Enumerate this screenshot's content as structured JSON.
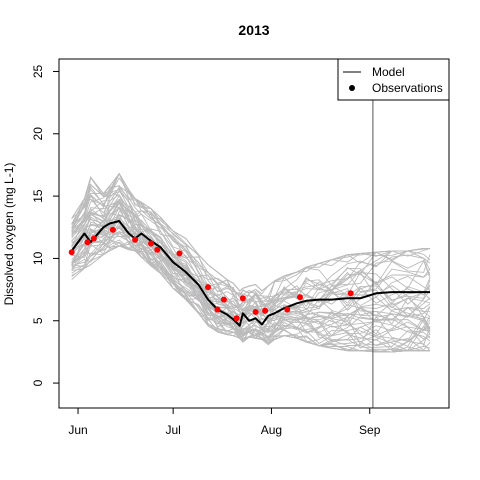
{
  "chart_data": {
    "type": "line",
    "title": "2013",
    "xlabel": "",
    "ylabel": "Dissolved oxygen (mg L-1)",
    "xlim": [
      "2013-05-26",
      "2013-09-26"
    ],
    "ylim": [
      -2,
      26
    ],
    "x_ticks": [
      {
        "date": "2013-06-01",
        "label": "Jun"
      },
      {
        "date": "2013-07-01",
        "label": "Jul"
      },
      {
        "date": "2013-08-01",
        "label": "Aug"
      },
      {
        "date": "2013-09-01",
        "label": "Sep"
      }
    ],
    "y_ticks": [
      0,
      5,
      10,
      15,
      20,
      25
    ],
    "grid": false,
    "legend": {
      "position": "top-right",
      "entries": [
        {
          "label": "Model",
          "symbol": "line",
          "color": "#000000"
        },
        {
          "label": "Observations",
          "symbol": "point",
          "color": "#000000"
        }
      ]
    },
    "vertical_line": {
      "date": "2013-09-02",
      "color": "#555555"
    },
    "ensemble": {
      "color": "#bbbbbb",
      "members": 60,
      "x": [
        "2013-05-30",
        "2013-06-03",
        "2013-06-05",
        "2013-06-09",
        "2013-06-11",
        "2013-06-14",
        "2013-06-17",
        "2013-06-19",
        "2013-06-21",
        "2013-06-24",
        "2013-06-27",
        "2013-07-01",
        "2013-07-05",
        "2013-07-09",
        "2013-07-12",
        "2013-07-15",
        "2013-07-18",
        "2013-07-20",
        "2013-07-22",
        "2013-07-23",
        "2013-07-25",
        "2013-07-27",
        "2013-07-29",
        "2013-07-31",
        "2013-08-02",
        "2013-08-05",
        "2013-08-09",
        "2013-08-12",
        "2013-08-16",
        "2013-08-20",
        "2013-08-25",
        "2013-08-29",
        "2013-09-03",
        "2013-09-08",
        "2013-09-13",
        "2013-09-18",
        "2013-09-20"
      ],
      "upper": [
        13.2,
        14.8,
        16.5,
        15.2,
        15.8,
        16.8,
        15.5,
        14.8,
        14.5,
        14.0,
        13.3,
        12.2,
        11.6,
        10.3,
        9.5,
        8.9,
        8.3,
        8.0,
        7.4,
        7.6,
        7.8,
        7.9,
        7.4,
        7.8,
        8.2,
        8.6,
        8.9,
        9.3,
        9.6,
        9.9,
        10.3,
        10.4,
        10.5,
        10.6,
        10.6,
        10.8,
        10.8
      ],
      "lower": [
        8.3,
        9.2,
        9.5,
        10.3,
        10.6,
        11.0,
        10.7,
        10.6,
        10.1,
        9.4,
        8.8,
        7.6,
        6.7,
        5.6,
        4.6,
        4.1,
        3.9,
        3.8,
        3.6,
        3.3,
        3.7,
        3.6,
        3.5,
        3.1,
        3.5,
        3.8,
        3.6,
        3.3,
        3.0,
        2.8,
        2.6,
        2.6,
        2.5,
        2.5,
        2.6,
        2.6,
        2.6
      ]
    },
    "series": [
      {
        "name": "Model",
        "color": "#000000",
        "x": [
          "2013-05-30",
          "2013-06-03",
          "2013-06-05",
          "2013-06-09",
          "2013-06-11",
          "2013-06-14",
          "2013-06-17",
          "2013-06-19",
          "2013-06-21",
          "2013-06-24",
          "2013-06-27",
          "2013-07-01",
          "2013-07-05",
          "2013-07-09",
          "2013-07-12",
          "2013-07-15",
          "2013-07-18",
          "2013-07-20",
          "2013-07-22",
          "2013-07-23",
          "2013-07-25",
          "2013-07-27",
          "2013-07-29",
          "2013-07-31",
          "2013-08-02",
          "2013-08-05",
          "2013-08-09",
          "2013-08-12",
          "2013-08-16",
          "2013-08-20",
          "2013-08-25",
          "2013-08-29",
          "2013-09-03",
          "2013-09-08",
          "2013-09-13",
          "2013-09-18",
          "2013-09-20"
        ],
        "y": [
          10.6,
          12.0,
          11.3,
          12.5,
          12.8,
          13.0,
          12.0,
          11.6,
          12.0,
          11.4,
          10.9,
          9.7,
          8.9,
          7.9,
          6.7,
          5.9,
          5.5,
          5.1,
          4.6,
          5.6,
          5.0,
          5.2,
          4.7,
          5.4,
          5.6,
          6.0,
          6.4,
          6.6,
          6.7,
          6.7,
          6.8,
          6.8,
          7.2,
          7.3,
          7.3,
          7.3,
          7.3
        ]
      },
      {
        "name": "Observations",
        "type": "scatter",
        "color": "#ff0000",
        "x": [
          "2013-05-30",
          "2013-06-04",
          "2013-06-06",
          "2013-06-12",
          "2013-06-19",
          "2013-06-24",
          "2013-06-26",
          "2013-07-03",
          "2013-07-12",
          "2013-07-15",
          "2013-07-17",
          "2013-07-21",
          "2013-07-23",
          "2013-07-27",
          "2013-07-30",
          "2013-08-06",
          "2013-08-10",
          "2013-08-26"
        ],
        "y": [
          10.5,
          11.3,
          11.6,
          12.3,
          11.5,
          11.2,
          10.7,
          10.4,
          7.7,
          5.9,
          6.7,
          5.2,
          6.8,
          5.7,
          5.8,
          5.9,
          6.9,
          7.2
        ]
      }
    ]
  }
}
